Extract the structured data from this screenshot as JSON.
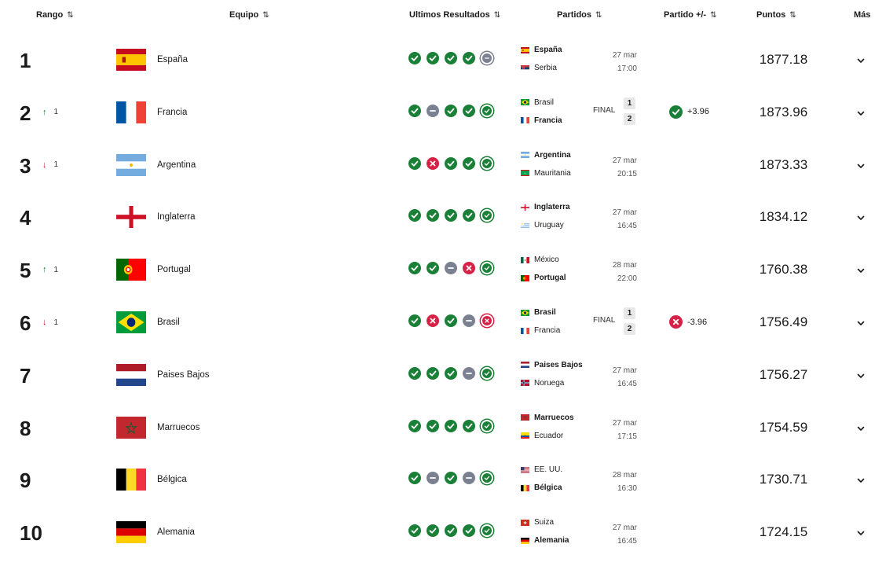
{
  "headers": {
    "rank": "Rango",
    "team": "Equipo",
    "form": "Ultimos Resultados",
    "matches": "Partidos",
    "delta": "Partido +/-",
    "points": "Puntos",
    "more": "Más"
  },
  "colors": {
    "win": "#1a7f37",
    "loss": "#d62246",
    "draw": "#7c8191"
  },
  "rows": [
    {
      "rank": "1",
      "move": "",
      "moveDir": "",
      "team": "España",
      "flag": "spain",
      "form": [
        "w",
        "w",
        "w",
        "w",
        "D"
      ],
      "match": {
        "home": "España",
        "homeFlag": "spain",
        "homeBold": true,
        "away": "Serbia",
        "awayFlag": "serbia",
        "awayBold": false,
        "date": "27 mar",
        "time": "17:00"
      },
      "points": "1877.18"
    },
    {
      "rank": "2",
      "move": "1",
      "moveDir": "up",
      "team": "Francia",
      "flag": "france",
      "form": [
        "w",
        "d",
        "w",
        "w",
        "W"
      ],
      "match": {
        "home": "Brasil",
        "homeFlag": "brazil",
        "homeBold": false,
        "away": "Francia",
        "awayFlag": "france",
        "awayBold": true,
        "status": "FINAL",
        "homeScore": "1",
        "awayScore": "2"
      },
      "delta": {
        "type": "w",
        "text": "+3.96"
      },
      "points": "1873.96"
    },
    {
      "rank": "3",
      "move": "1",
      "moveDir": "down",
      "team": "Argentina",
      "flag": "argentina",
      "form": [
        "w",
        "l",
        "w",
        "w",
        "W"
      ],
      "match": {
        "home": "Argentina",
        "homeFlag": "argentina",
        "homeBold": true,
        "away": "Mauritania",
        "awayFlag": "mauritania",
        "awayBold": false,
        "date": "27 mar",
        "time": "20:15"
      },
      "points": "1873.33"
    },
    {
      "rank": "4",
      "move": "",
      "moveDir": "",
      "team": "Inglaterra",
      "flag": "england",
      "form": [
        "w",
        "w",
        "w",
        "w",
        "W"
      ],
      "match": {
        "home": "Inglaterra",
        "homeFlag": "england",
        "homeBold": true,
        "away": "Uruguay",
        "awayFlag": "uruguay",
        "awayBold": false,
        "date": "27 mar",
        "time": "16:45"
      },
      "points": "1834.12"
    },
    {
      "rank": "5",
      "move": "1",
      "moveDir": "up",
      "team": "Portugal",
      "flag": "portugal",
      "form": [
        "w",
        "w",
        "d",
        "l",
        "W"
      ],
      "match": {
        "home": "México",
        "homeFlag": "mexico",
        "homeBold": false,
        "away": "Portugal",
        "awayFlag": "portugal",
        "awayBold": true,
        "date": "28 mar",
        "time": "22:00"
      },
      "points": "1760.38"
    },
    {
      "rank": "6",
      "move": "1",
      "moveDir": "down",
      "team": "Brasil",
      "flag": "brazil",
      "form": [
        "w",
        "l",
        "w",
        "d",
        "L"
      ],
      "match": {
        "home": "Brasil",
        "homeFlag": "brazil",
        "homeBold": true,
        "away": "Francia",
        "awayFlag": "france",
        "awayBold": false,
        "status": "FINAL",
        "homeScore": "1",
        "awayScore": "2"
      },
      "delta": {
        "type": "l",
        "text": "-3.96"
      },
      "points": "1756.49"
    },
    {
      "rank": "7",
      "move": "",
      "moveDir": "",
      "team": "Paises Bajos",
      "flag": "netherlands",
      "form": [
        "w",
        "w",
        "w",
        "d",
        "W"
      ],
      "match": {
        "home": "Paises Bajos",
        "homeFlag": "netherlands",
        "homeBold": true,
        "away": "Noruega",
        "awayFlag": "norway",
        "awayBold": false,
        "date": "27 mar",
        "time": "16:45"
      },
      "points": "1756.27"
    },
    {
      "rank": "8",
      "move": "",
      "moveDir": "",
      "team": "Marruecos",
      "flag": "morocco",
      "form": [
        "w",
        "w",
        "w",
        "w",
        "W"
      ],
      "match": {
        "home": "Marruecos",
        "homeFlag": "morocco",
        "homeBold": true,
        "away": "Ecuador",
        "awayFlag": "ecuador",
        "awayBold": false,
        "date": "27 mar",
        "time": "17:15"
      },
      "points": "1754.59"
    },
    {
      "rank": "9",
      "move": "",
      "moveDir": "",
      "team": "Bélgica",
      "flag": "belgium",
      "form": [
        "w",
        "d",
        "w",
        "d",
        "W"
      ],
      "match": {
        "home": "EE. UU.",
        "homeFlag": "usa",
        "homeBold": false,
        "away": "Bélgica",
        "awayFlag": "belgium",
        "awayBold": true,
        "date": "28 mar",
        "time": "16:30"
      },
      "points": "1730.71"
    },
    {
      "rank": "10",
      "move": "",
      "moveDir": "",
      "team": "Alemania",
      "flag": "germany",
      "form": [
        "w",
        "w",
        "w",
        "w",
        "W"
      ],
      "match": {
        "home": "Suiza",
        "homeFlag": "switzerland",
        "homeBold": false,
        "away": "Alemania",
        "awayFlag": "germany",
        "awayBold": true,
        "date": "27 mar",
        "time": "16:45"
      },
      "points": "1724.15"
    }
  ]
}
